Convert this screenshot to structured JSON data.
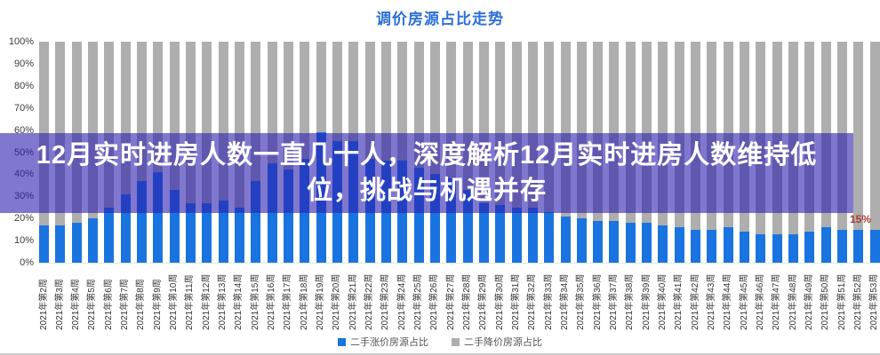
{
  "title": "调价房源占比走势",
  "overlay": {
    "line1": "12月实时进房人数一直几十人，深度解析12月实时进房人数维持低",
    "line2": "位，挑战与机遇并存",
    "band_color": "rgba(43,30,173,0.6)",
    "text_color": "#ffffff"
  },
  "annotation": {
    "text": "15%",
    "color": "#b03a2e"
  },
  "legend": [
    {
      "label": "二手涨价房源占比",
      "color": "#1a74e0"
    },
    {
      "label": "二手降价房源占比",
      "color": "#aeaeae"
    }
  ],
  "chart_data": {
    "type": "bar",
    "stacked": true,
    "title": "调价房源占比走势",
    "xlabel": "",
    "ylabel": "",
    "ylim": [
      0,
      100
    ],
    "grid": false,
    "legend_position": "bottom",
    "y_ticks": [
      "100%",
      "90%",
      "80%",
      "70%",
      "60%",
      "50%",
      "40%",
      "30%",
      "20%",
      "10%",
      "0%"
    ],
    "categories": [
      "2021年第2周",
      "2021年第3周",
      "2021年第4周",
      "2021年第5周",
      "2021年第6周",
      "2021年第7周",
      "2021年第8周",
      "2021年第9周",
      "2021年第10周",
      "2021年第11周",
      "2021年第12周",
      "2021年第13周",
      "2021年第14周",
      "2021年第15周",
      "2021年第16周",
      "2021年第17周",
      "2021年第18周",
      "2021年第19周",
      "2021年第20周",
      "2021年第21周",
      "2021年第22周",
      "2021年第23周",
      "2021年第24周",
      "2021年第25周",
      "2021年第26周",
      "2021年第27周",
      "2021年第28周",
      "2021年第29周",
      "2021年第30周",
      "2021年第31周",
      "2021年第32周",
      "2021年第33周",
      "2021年第34周",
      "2021年第35周",
      "2021年第36周",
      "2021年第37周",
      "2021年第38周",
      "2021年第39周",
      "2021年第40周",
      "2021年第41周",
      "2021年第42周",
      "2021年第43周",
      "2021年第44周",
      "2021年第45周",
      "2021年第46周",
      "2021年第47周",
      "2021年第48周",
      "2021年第49周",
      "2021年第50周",
      "2021年第51周",
      "2021年第52周",
      "2021年第53周"
    ],
    "series": [
      {
        "name": "二手涨价房源占比",
        "color": "#1a74e0",
        "values": [
          17,
          17,
          18,
          20,
          25,
          31,
          37,
          41,
          33,
          27,
          27,
          28,
          25,
          37,
          45,
          42,
          47,
          59,
          55,
          55,
          47,
          46,
          46,
          43,
          40,
          38,
          33,
          27,
          26,
          25,
          25,
          23,
          21,
          20,
          19,
          19,
          18,
          18,
          17,
          16,
          15,
          15,
          16,
          14,
          13,
          13,
          13,
          14,
          16,
          15,
          15,
          15
        ]
      },
      {
        "name": "二手降价房源占比",
        "color": "#aeaeae",
        "values": [
          83,
          83,
          82,
          80,
          75,
          69,
          63,
          59,
          67,
          73,
          73,
          72,
          75,
          63,
          55,
          58,
          53,
          41,
          45,
          45,
          53,
          54,
          54,
          57,
          60,
          62,
          67,
          73,
          74,
          75,
          75,
          77,
          79,
          80,
          81,
          81,
          82,
          82,
          83,
          84,
          85,
          85,
          84,
          86,
          87,
          87,
          87,
          86,
          84,
          85,
          85,
          85
        ]
      }
    ],
    "data_labels": [
      {
        "category": "2021年第53周",
        "series": "二手涨价房源占比",
        "text": "15%"
      }
    ]
  }
}
